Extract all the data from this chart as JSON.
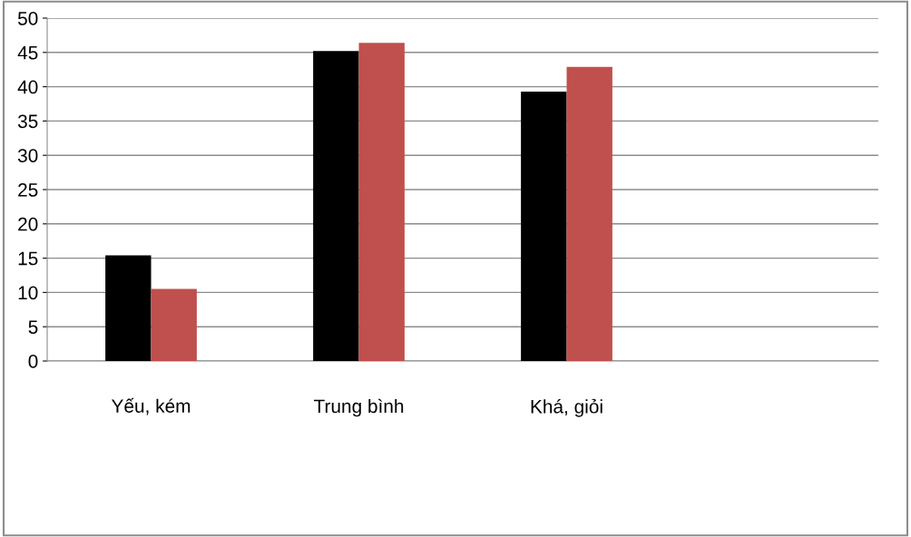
{
  "chart_data": {
    "type": "bar",
    "categories": [
      "Yếu, kém",
      "Trung bình",
      "Khá, giỏi",
      null
    ],
    "series": [
      {
        "color": "#000000",
        "values": [
          15.4,
          45.2,
          39.3,
          null
        ]
      },
      {
        "color": "#c0504d",
        "values": [
          10.5,
          46.4,
          42.9,
          null
        ]
      }
    ],
    "ylim": [
      0,
      50
    ],
    "yticks": [
      0,
      5,
      10,
      15,
      20,
      25,
      30,
      35,
      40,
      45,
      50
    ],
    "grid": "y",
    "legend": false
  }
}
